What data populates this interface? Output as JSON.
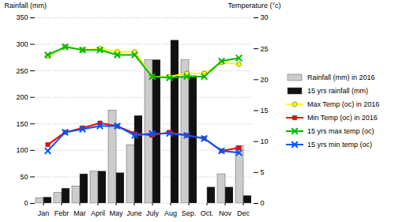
{
  "chart_data": {
    "type": "bar",
    "categories": [
      "Jan",
      "Febr",
      "Mar",
      "April",
      "May",
      "June",
      "July",
      "Aug",
      "Sep.",
      "Oct.",
      "Nov",
      "Dec"
    ],
    "ylabel": "Rainfall (mm)",
    "y2label": "Temperature (°c)",
    "ylim": [
      0,
      350
    ],
    "yticks": [
      0,
      50,
      100,
      150,
      200,
      250,
      300,
      350
    ],
    "y2lim": [
      0,
      30
    ],
    "y2ticks": [
      0,
      5,
      10,
      15,
      20,
      25,
      30
    ],
    "grid": true,
    "legend": "right",
    "series": [
      {
        "name": "Rainfall (mm) in 2016",
        "type": "bar",
        "color": "#cccccc",
        "values": [
          10,
          20,
          32,
          60,
          175,
          110,
          270,
          0,
          270,
          0,
          55,
          108
        ]
      },
      {
        "name": "15 yrs rainfall (mm)",
        "type": "bar",
        "color": "#111111",
        "values": [
          11,
          28,
          55,
          60,
          57,
          165,
          270,
          307,
          240,
          30,
          30,
          14
        ]
      },
      {
        "name": "Max Temp (oc) in 2016",
        "type": "line",
        "axis": "y2",
        "color": "#ffff00",
        "marker": "circle",
        "values": [
          23.8,
          25.3,
          24.8,
          25.0,
          24.5,
          24.5,
          20.5,
          20.5,
          21.0,
          21.0,
          22.8,
          22.5
        ]
      },
      {
        "name": "Min Temp (oc) in 2016",
        "type": "line",
        "axis": "y2",
        "color": "#ff0000",
        "marker": "square",
        "values": [
          9.5,
          11.5,
          12.2,
          13.0,
          12.5,
          11.3,
          11.0,
          11.5,
          11.0,
          10.5,
          8.5,
          9.0
        ]
      },
      {
        "name": "15 yrs max temp (oc)",
        "type": "line",
        "axis": "y2",
        "color": "#00bb00",
        "marker": "x",
        "values": [
          24.0,
          25.3,
          24.8,
          24.8,
          24.0,
          24.0,
          20.5,
          20.3,
          20.5,
          20.5,
          23.0,
          23.5
        ]
      },
      {
        "name": "15 yrs min temp (oc)",
        "type": "line",
        "axis": "y2",
        "color": "#0055ff",
        "marker": "x",
        "values": [
          8.5,
          11.5,
          12.0,
          12.5,
          12.5,
          11.0,
          11.3,
          11.3,
          11.0,
          10.5,
          8.5,
          8.2
        ]
      }
    ]
  }
}
